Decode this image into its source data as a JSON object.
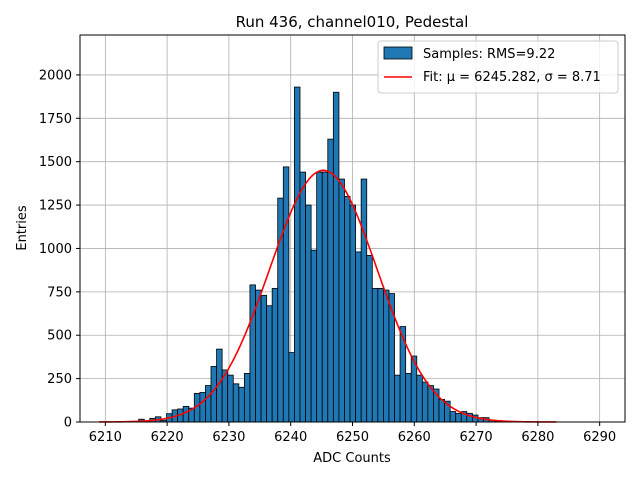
{
  "chart_data": {
    "type": "bar",
    "title": "Run 436, channel010, Pedestal",
    "xlabel": "ADC Counts",
    "ylabel": "Entries",
    "xlim": [
      6205.9,
      6294.1
    ],
    "ylim": [
      0,
      2230
    ],
    "xticks": [
      6210,
      6220,
      6230,
      6240,
      6250,
      6260,
      6270,
      6280,
      6290
    ],
    "yticks": [
      0,
      250,
      500,
      750,
      1000,
      1250,
      1500,
      1750,
      2000
    ],
    "grid": true,
    "legend_position": "top-right",
    "bar_color": "#1f77b4",
    "fit_color": "#ff0000",
    "bin_width": 0.904,
    "bins": [
      [
        6215.4,
        16
      ],
      [
        6216.3,
        5
      ],
      [
        6217.2,
        21
      ],
      [
        6218.1,
        30
      ],
      [
        6219.0,
        10
      ],
      [
        6219.9,
        48
      ],
      [
        6220.8,
        70
      ],
      [
        6221.7,
        75
      ],
      [
        6222.6,
        90
      ],
      [
        6223.5,
        80
      ],
      [
        6224.4,
        165
      ],
      [
        6225.3,
        170
      ],
      [
        6226.2,
        210
      ],
      [
        6227.1,
        320
      ],
      [
        6228.0,
        420
      ],
      [
        6228.9,
        300
      ],
      [
        6229.8,
        270
      ],
      [
        6230.7,
        220
      ],
      [
        6231.6,
        200
      ],
      [
        6232.5,
        280
      ],
      [
        6233.4,
        790
      ],
      [
        6234.3,
        760
      ],
      [
        6235.2,
        730
      ],
      [
        6236.1,
        670
      ],
      [
        6237.0,
        770
      ],
      [
        6237.9,
        1290
      ],
      [
        6238.8,
        1470
      ],
      [
        6239.7,
        400
      ],
      [
        6240.6,
        1930
      ],
      [
        6241.5,
        1440
      ],
      [
        6242.4,
        1250
      ],
      [
        6243.3,
        990
      ],
      [
        6244.2,
        1440
      ],
      [
        6245.1,
        1440
      ],
      [
        6246.0,
        1630
      ],
      [
        6246.9,
        1900
      ],
      [
        6247.8,
        1400
      ],
      [
        6248.7,
        1300
      ],
      [
        6249.6,
        1250
      ],
      [
        6250.5,
        980
      ],
      [
        6251.4,
        1400
      ],
      [
        6252.3,
        960
      ],
      [
        6253.2,
        770
      ],
      [
        6254.1,
        770
      ],
      [
        6255.0,
        760
      ],
      [
        6255.9,
        740
      ],
      [
        6256.8,
        270
      ],
      [
        6257.7,
        550
      ],
      [
        6258.6,
        280
      ],
      [
        6259.5,
        380
      ],
      [
        6260.4,
        270
      ],
      [
        6261.3,
        230
      ],
      [
        6262.2,
        210
      ],
      [
        6263.1,
        190
      ],
      [
        6264.0,
        130
      ],
      [
        6264.9,
        120
      ],
      [
        6265.8,
        60
      ],
      [
        6266.7,
        50
      ],
      [
        6267.6,
        60
      ],
      [
        6268.5,
        50
      ],
      [
        6269.4,
        40
      ],
      [
        6270.3,
        25
      ],
      [
        6271.2,
        25
      ],
      [
        6272.1,
        10
      ],
      [
        6273.0,
        5
      ]
    ],
    "series": [
      {
        "name": "Samples: RMS=9.22",
        "kind": "histogram"
      },
      {
        "name": "Fit: μ = 6245.282, σ = 8.71",
        "kind": "gaussian-fit",
        "mu": 6245.282,
        "sigma": 8.71,
        "amplitude": 1450,
        "x_range": [
          6209,
          6283
        ]
      }
    ]
  }
}
